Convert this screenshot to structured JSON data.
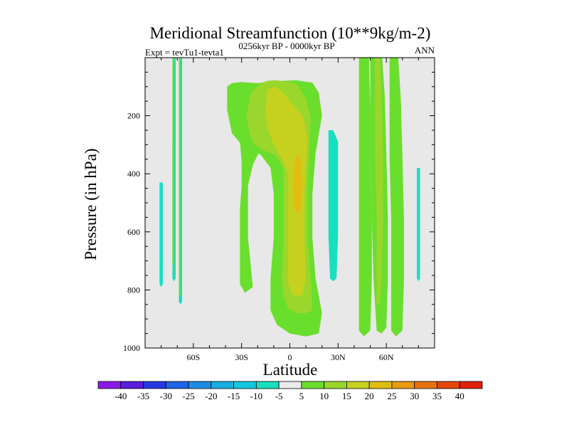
{
  "chart_data": {
    "type": "contour",
    "title": "Meridional Streamfunction (10**9kg/m-2)",
    "left_label": "Expt = tevTu1-tevta1",
    "center_label": "0256kyr BP - 0000kyr BP",
    "right_label": "ANN",
    "xlabel": "Latitude",
    "ylabel": "Pressure (in hPa)",
    "xlim": [
      -90,
      90
    ],
    "ylim": [
      0,
      1000
    ],
    "x_ticks": [
      {
        "value": -60,
        "label": "60S"
      },
      {
        "value": -30,
        "label": "30S"
      },
      {
        "value": 0,
        "label": "0"
      },
      {
        "value": 30,
        "label": "30N"
      },
      {
        "value": 60,
        "label": "60N"
      }
    ],
    "y_ticks": [
      {
        "value": 200,
        "label": "200"
      },
      {
        "value": 400,
        "label": "400"
      },
      {
        "value": 600,
        "label": "600"
      },
      {
        "value": 800,
        "label": "800"
      },
      {
        "value": 1000,
        "label": "1000"
      }
    ],
    "colorbar": {
      "levels": [
        "-40",
        "-35",
        "-30",
        "-25",
        "-20",
        "-15",
        "-10",
        "-5",
        "5",
        "10",
        "15",
        "20",
        "25",
        "30",
        "35",
        "40"
      ],
      "colors": [
        "#8A1BE6",
        "#5A1DDC",
        "#2738E1",
        "#1F63E6",
        "#1C8CE4",
        "#16ADE0",
        "#12C8DD",
        "#17DFC0",
        "#EBEBEB",
        "#6ADE2D",
        "#9AD62B",
        "#C6D11F",
        "#E1BC13",
        "#E89A10",
        "#E6720F",
        "#E5460C",
        "#DF1F0B"
      ]
    },
    "missing_color": "#E8E8E8",
    "regions": [
      {
        "class": 10,
        "color": "#6ADE2D",
        "points": [
          [
            -39,
            100
          ],
          [
            -36,
            88
          ],
          [
            -30,
            84
          ],
          [
            -20,
            88
          ],
          [
            -14,
            84
          ],
          [
            -4,
            80
          ],
          [
            4,
            78
          ],
          [
            14,
            86
          ],
          [
            18,
            120
          ],
          [
            20,
            200
          ],
          [
            16,
            330
          ],
          [
            14,
            470
          ],
          [
            14,
            620
          ],
          [
            16,
            760
          ],
          [
            20,
            880
          ],
          [
            18,
            950
          ],
          [
            10,
            960
          ],
          [
            0,
            950
          ],
          [
            -8,
            920
          ],
          [
            -12,
            870
          ],
          [
            -12,
            760
          ],
          [
            -10,
            620
          ],
          [
            -10,
            470
          ],
          [
            -12,
            380
          ],
          [
            -18,
            335
          ],
          [
            -30,
            300
          ],
          [
            -36,
            260
          ],
          [
            -39,
            180
          ]
        ]
      },
      {
        "class": 10,
        "color": "#6ADE2D",
        "points": [
          [
            -31,
            108
          ],
          [
            -27,
            103
          ],
          [
            -22,
            110
          ],
          [
            -20,
            140
          ],
          [
            -21,
            170
          ],
          [
            -27,
            180
          ],
          [
            -31,
            150
          ]
        ]
      },
      {
        "class": 10,
        "color": "#6ADE2D",
        "points": [
          [
            -27,
            185
          ],
          [
            -18,
            188
          ],
          [
            -13,
            220
          ],
          [
            -17,
            300
          ],
          [
            -23,
            370
          ],
          [
            -26,
            440
          ],
          [
            -26,
            520
          ],
          [
            -26,
            620
          ],
          [
            -23,
            790
          ],
          [
            -28,
            810
          ],
          [
            -31,
            780
          ],
          [
            -31,
            620
          ],
          [
            -31,
            520
          ],
          [
            -30,
            440
          ],
          [
            -30,
            360
          ],
          [
            -31,
            290
          ],
          [
            -31,
            210
          ]
        ]
      },
      {
        "class": 10,
        "color": "#6ADE2D",
        "points": [
          [
            43,
            -35
          ],
          [
            49,
            -35
          ],
          [
            50,
            180
          ],
          [
            50,
            350
          ],
          [
            51,
            560
          ],
          [
            51,
            760
          ],
          [
            50,
            940
          ],
          [
            46,
            960
          ],
          [
            43,
            940
          ],
          [
            43,
            760
          ],
          [
            43,
            560
          ],
          [
            43,
            350
          ],
          [
            43,
            180
          ]
        ]
      },
      {
        "class": 10,
        "color": "#6ADE2D",
        "points": [
          [
            50,
            -35
          ],
          [
            57,
            -35
          ],
          [
            59,
            130
          ],
          [
            60,
            330
          ],
          [
            61,
            560
          ],
          [
            61,
            760
          ],
          [
            60,
            930
          ],
          [
            57,
            950
          ],
          [
            54,
            940
          ],
          [
            52,
            760
          ],
          [
            51,
            560
          ],
          [
            50,
            330
          ],
          [
            50,
            130
          ]
        ]
      },
      {
        "class": 10,
        "color": "#6ADE2D",
        "points": [
          [
            62,
            -35
          ],
          [
            67,
            -35
          ],
          [
            69,
            140
          ],
          [
            70,
            340
          ],
          [
            71,
            560
          ],
          [
            71,
            760
          ],
          [
            70,
            940
          ],
          [
            66,
            960
          ],
          [
            63,
            940
          ],
          [
            63,
            760
          ],
          [
            63,
            560
          ],
          [
            62,
            340
          ],
          [
            62,
            140
          ]
        ]
      },
      {
        "class": 15,
        "color": "#9AD62B",
        "points": [
          [
            -14,
            80
          ],
          [
            -9,
            78
          ],
          [
            -3,
            82
          ],
          [
            4,
            90
          ],
          [
            10,
            140
          ],
          [
            13,
            210
          ],
          [
            12,
            320
          ],
          [
            11,
            470
          ],
          [
            11,
            620
          ],
          [
            13,
            760
          ],
          [
            14,
            870
          ],
          [
            10,
            880
          ],
          [
            4,
            880
          ],
          [
            -1,
            865
          ],
          [
            -4,
            820
          ],
          [
            -5,
            760
          ],
          [
            -4,
            620
          ],
          [
            -4,
            470
          ],
          [
            -4,
            380
          ],
          [
            -9,
            335
          ],
          [
            -16,
            320
          ],
          [
            -22,
            300
          ],
          [
            -25,
            265
          ],
          [
            -27,
            200
          ],
          [
            -24,
            120
          ],
          [
            -18,
            90
          ]
        ]
      },
      {
        "class": 15,
        "color": "#9AD62B",
        "points": [
          [
            53,
            -20
          ],
          [
            56,
            -20
          ],
          [
            57,
            120
          ],
          [
            58,
            320
          ],
          [
            58,
            560
          ],
          [
            57,
            760
          ],
          [
            56,
            850
          ],
          [
            54,
            850
          ],
          [
            54,
            760
          ],
          [
            54,
            560
          ],
          [
            53,
            320
          ],
          [
            53,
            120
          ]
        ]
      },
      {
        "class": 20,
        "color": "#C6D11F",
        "points": [
          [
            -14,
            110
          ],
          [
            -9,
            100
          ],
          [
            -4,
            120
          ],
          [
            0,
            150
          ],
          [
            8,
            200
          ],
          [
            11,
            280
          ],
          [
            10,
            380
          ],
          [
            9,
            470
          ],
          [
            9,
            620
          ],
          [
            10,
            760
          ],
          [
            8,
            820
          ],
          [
            2,
            818
          ],
          [
            -1,
            780
          ],
          [
            -1,
            620
          ],
          [
            -1,
            470
          ],
          [
            -1,
            400
          ],
          [
            -4,
            360
          ],
          [
            -10,
            300
          ],
          [
            -14,
            240
          ],
          [
            -15,
            180
          ]
        ]
      },
      {
        "class": 25,
        "color": "#E1BC13",
        "points": [
          [
            3,
            360
          ],
          [
            5,
            330
          ],
          [
            7,
            360
          ],
          [
            8,
            450
          ],
          [
            7,
            520
          ],
          [
            5,
            540
          ],
          [
            3,
            515
          ],
          [
            2,
            450
          ]
        ]
      },
      {
        "class": -5,
        "color": "#17DFC0",
        "points": [
          [
            24,
            250
          ],
          [
            27,
            250
          ],
          [
            30,
            290
          ],
          [
            30,
            450
          ],
          [
            30,
            610
          ],
          [
            29,
            760
          ],
          [
            27,
            770
          ],
          [
            25,
            760
          ],
          [
            24,
            610
          ],
          [
            24,
            450
          ],
          [
            24,
            290
          ]
        ]
      },
      {
        "class": -5,
        "color": "#17DFC0",
        "points": [
          [
            -80,
            430
          ],
          [
            -79,
            430
          ],
          [
            -79,
            600
          ],
          [
            -79,
            780
          ],
          [
            -80,
            790
          ],
          [
            -81,
            780
          ],
          [
            -81,
            600
          ],
          [
            -81,
            430
          ]
        ]
      },
      {
        "class": -5,
        "color": "#17DFC0",
        "points": [
          [
            -72,
            -20
          ],
          [
            -71,
            -20
          ],
          [
            -71,
            300
          ],
          [
            -71,
            600
          ],
          [
            -71,
            760
          ],
          [
            -72,
            770
          ],
          [
            -73,
            760
          ],
          [
            -73,
            600
          ],
          [
            -73,
            300
          ]
        ]
      },
      {
        "class": -5,
        "color": "#17DFC0",
        "points": [
          [
            -68,
            -10
          ],
          [
            -67,
            -10
          ],
          [
            -67,
            300
          ],
          [
            -67,
            600
          ],
          [
            -67,
            840
          ],
          [
            -68,
            850
          ],
          [
            -69,
            840
          ],
          [
            -69,
            600
          ],
          [
            -69,
            300
          ]
        ]
      },
      {
        "class": -5,
        "color": "#17DFC0",
        "points": [
          [
            80,
            380
          ],
          [
            81,
            380
          ],
          [
            81,
            560
          ],
          [
            81,
            760
          ],
          [
            80,
            770
          ],
          [
            79,
            760
          ],
          [
            79,
            560
          ],
          [
            79,
            380
          ]
        ]
      },
      {
        "class": 10,
        "color": "#6ADE2D",
        "points": [
          [
            -73,
            -20
          ],
          [
            -72,
            -20
          ],
          [
            -72,
            300
          ],
          [
            -72,
            600
          ],
          [
            -72,
            760
          ],
          [
            -73,
            700
          ],
          [
            -73,
            300
          ]
        ]
      },
      {
        "class": 10,
        "color": "#6ADE2D",
        "points": [
          [
            -69,
            -10
          ],
          [
            -68,
            -10
          ],
          [
            -68,
            300
          ],
          [
            -68,
            600
          ],
          [
            -68,
            820
          ],
          [
            -69,
            820
          ],
          [
            -69,
            300
          ]
        ]
      }
    ]
  }
}
